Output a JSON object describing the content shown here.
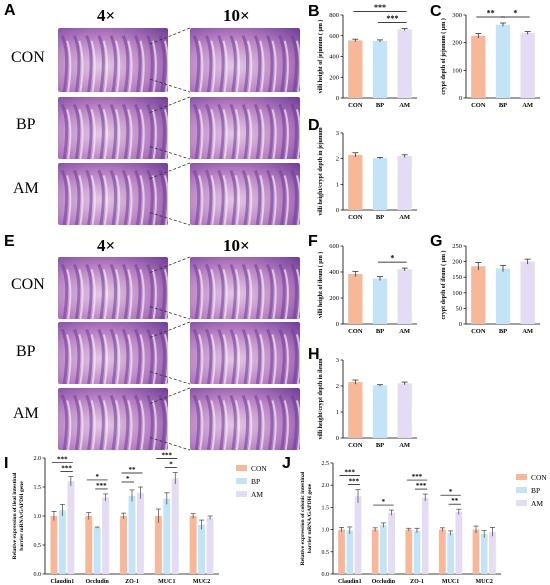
{
  "panels": {
    "A": "A",
    "B": "B",
    "C": "C",
    "D": "D",
    "E": "E",
    "F": "F",
    "G": "G",
    "H": "H",
    "I": "I",
    "J": "J"
  },
  "micrographs": {
    "mag_low": "4×",
    "mag_high": "10×",
    "groups": [
      "CON",
      "BP",
      "AM"
    ]
  },
  "colors": {
    "CON": "#f7b79a",
    "BP": "#c5e3f7",
    "AM": "#e3dcf2",
    "tissue_light": "#e4c8e6",
    "tissue_mid": "#b77fc2",
    "tissue_dark": "#6e3c96"
  },
  "chart_data": [
    {
      "id": "B",
      "type": "bar",
      "categories": [
        "CON",
        "BP",
        "AM"
      ],
      "values": [
        555,
        550,
        660
      ],
      "errors": [
        12,
        10,
        10
      ],
      "ylabel": "villi height of jejunum ( μm )",
      "ylim": [
        0,
        800
      ],
      "yticks": [
        0,
        200,
        400,
        600,
        800
      ],
      "sig": [
        {
          "from": 0,
          "to": 2,
          "label": "***",
          "level": 1
        },
        {
          "from": 1,
          "to": 2,
          "label": "***",
          "level": 0
        }
      ]
    },
    {
      "id": "C",
      "type": "bar",
      "categories": [
        "CON",
        "BP",
        "AM"
      ],
      "values": [
        225,
        265,
        235
      ],
      "errors": [
        8,
        6,
        5
      ],
      "ylabel": "crypt depth of jejunum ( μm )",
      "ylim": [
        0,
        300
      ],
      "yticks": [
        0,
        100,
        200,
        300
      ],
      "sig": [
        {
          "from": 0,
          "to": 1,
          "label": "**",
          "level": 0
        },
        {
          "from": 1,
          "to": 2,
          "label": "*",
          "level": 0
        }
      ]
    },
    {
      "id": "D",
      "type": "bar",
      "categories": [
        "CON",
        "BP",
        "AM"
      ],
      "values": [
        2.15,
        2.02,
        2.1
      ],
      "errors": [
        0.08,
        0.03,
        0.05
      ],
      "ylabel": "villi height/crypt depth  in jejunum",
      "ylim": [
        0,
        3
      ],
      "yticks": [
        0,
        1,
        2,
        3
      ],
      "sig": []
    },
    {
      "id": "F",
      "type": "bar",
      "categories": [
        "CON",
        "BP",
        "AM"
      ],
      "values": [
        385,
        350,
        420
      ],
      "errors": [
        20,
        15,
        10
      ],
      "ylabel": "villi height of ileum ( μm )",
      "ylim": [
        0,
        600
      ],
      "yticks": [
        0,
        200,
        400,
        600
      ],
      "sig": [
        {
          "from": 1,
          "to": 2,
          "label": "*",
          "level": 0
        }
      ]
    },
    {
      "id": "G",
      "type": "bar",
      "categories": [
        "CON",
        "BP",
        "AM"
      ],
      "values": [
        185,
        178,
        200
      ],
      "errors": [
        12,
        10,
        8
      ],
      "ylabel": "crypt depth of ileum ( μm )",
      "ylim": [
        0,
        250
      ],
      "yticks": [
        0,
        50,
        100,
        150,
        200,
        250
      ],
      "sig": []
    },
    {
      "id": "H",
      "type": "bar",
      "categories": [
        "CON",
        "BP",
        "AM"
      ],
      "values": [
        2.15,
        2.02,
        2.1
      ],
      "errors": [
        0.08,
        0.03,
        0.05
      ],
      "ylabel": "villi height/crypt depth  in ileum",
      "ylim": [
        0,
        3
      ],
      "yticks": [
        0,
        1,
        2,
        3
      ],
      "sig": []
    },
    {
      "id": "I",
      "type": "bar",
      "categories": [
        "Claudin1",
        "Occludin",
        "ZO-1",
        "MUC1",
        "MUC2"
      ],
      "series": [
        {
          "name": "CON",
          "values": [
            1.0,
            1.0,
            1.0,
            1.0,
            1.0
          ],
          "errors": [
            0.08,
            0.06,
            0.05,
            0.12,
            0.04
          ]
        },
        {
          "name": "BP",
          "values": [
            1.1,
            0.8,
            1.35,
            1.3,
            0.85
          ],
          "errors": [
            0.1,
            0.01,
            0.1,
            0.1,
            0.08
          ]
        },
        {
          "name": "AM",
          "values": [
            1.6,
            1.32,
            1.4,
            1.65,
            0.97
          ],
          "errors": [
            0.08,
            0.06,
            0.1,
            0.1,
            0.03
          ]
        }
      ],
      "ylabel": "Relative expression of  ileal intestinal barrier mRNA/GAPDH gene",
      "ylim": [
        0,
        2.0
      ],
      "yticks": [
        0.0,
        0.5,
        1.0,
        1.5,
        2.0
      ],
      "sig": [
        {
          "cat": 0,
          "from": 0,
          "to": 2,
          "label": "***",
          "level": 1
        },
        {
          "cat": 0,
          "from": 1,
          "to": 2,
          "label": "***",
          "level": 0
        },
        {
          "cat": 1,
          "from": 0,
          "to": 2,
          "label": "*",
          "level": 1
        },
        {
          "cat": 1,
          "from": 1,
          "to": 2,
          "label": "***",
          "level": 0
        },
        {
          "cat": 2,
          "from": 0,
          "to": 2,
          "label": "**",
          "level": 1
        },
        {
          "cat": 2,
          "from": 0,
          "to": 1,
          "label": "*",
          "level": 0
        },
        {
          "cat": 3,
          "from": 0,
          "to": 2,
          "label": "***",
          "level": 1
        },
        {
          "cat": 3,
          "from": 1,
          "to": 2,
          "label": "*",
          "level": 0
        }
      ],
      "legend": "right"
    },
    {
      "id": "J",
      "type": "bar",
      "categories": [
        "Claudin1",
        "Occludin",
        "ZO-1",
        "MUC1",
        "MUC2"
      ],
      "series": [
        {
          "name": "CON",
          "values": [
            1.0,
            1.0,
            1.0,
            1.0,
            1.0
          ],
          "errors": [
            0.05,
            0.04,
            0.03,
            0.04,
            0.08
          ]
        },
        {
          "name": "BP",
          "values": [
            0.98,
            1.1,
            0.98,
            0.92,
            0.9
          ],
          "errors": [
            0.08,
            0.05,
            0.05,
            0.05,
            0.08
          ]
        },
        {
          "name": "AM",
          "values": [
            1.75,
            1.38,
            1.72,
            1.4,
            0.95
          ],
          "errors": [
            0.15,
            0.06,
            0.08,
            0.06,
            0.1
          ]
        }
      ],
      "ylabel": "Relative expression of colonic intestinal barrier mRNA/GAPDH gene",
      "ylim": [
        0,
        2.5
      ],
      "yticks": [
        0.0,
        0.5,
        1.0,
        1.5,
        2.0,
        2.5
      ],
      "sig": [
        {
          "cat": 0,
          "from": 0,
          "to": 2,
          "label": "***",
          "level": 1
        },
        {
          "cat": 0,
          "from": 1,
          "to": 2,
          "label": "***",
          "level": 0
        },
        {
          "cat": 1,
          "from": 0,
          "to": 2,
          "label": "*",
          "level": 0
        },
        {
          "cat": 2,
          "from": 0,
          "to": 2,
          "label": "***",
          "level": 1
        },
        {
          "cat": 2,
          "from": 1,
          "to": 2,
          "label": "***",
          "level": 0
        },
        {
          "cat": 3,
          "from": 0,
          "to": 2,
          "label": "*",
          "level": 1
        },
        {
          "cat": 3,
          "from": 1,
          "to": 2,
          "label": "**",
          "level": 0
        }
      ],
      "legend": "right"
    }
  ]
}
